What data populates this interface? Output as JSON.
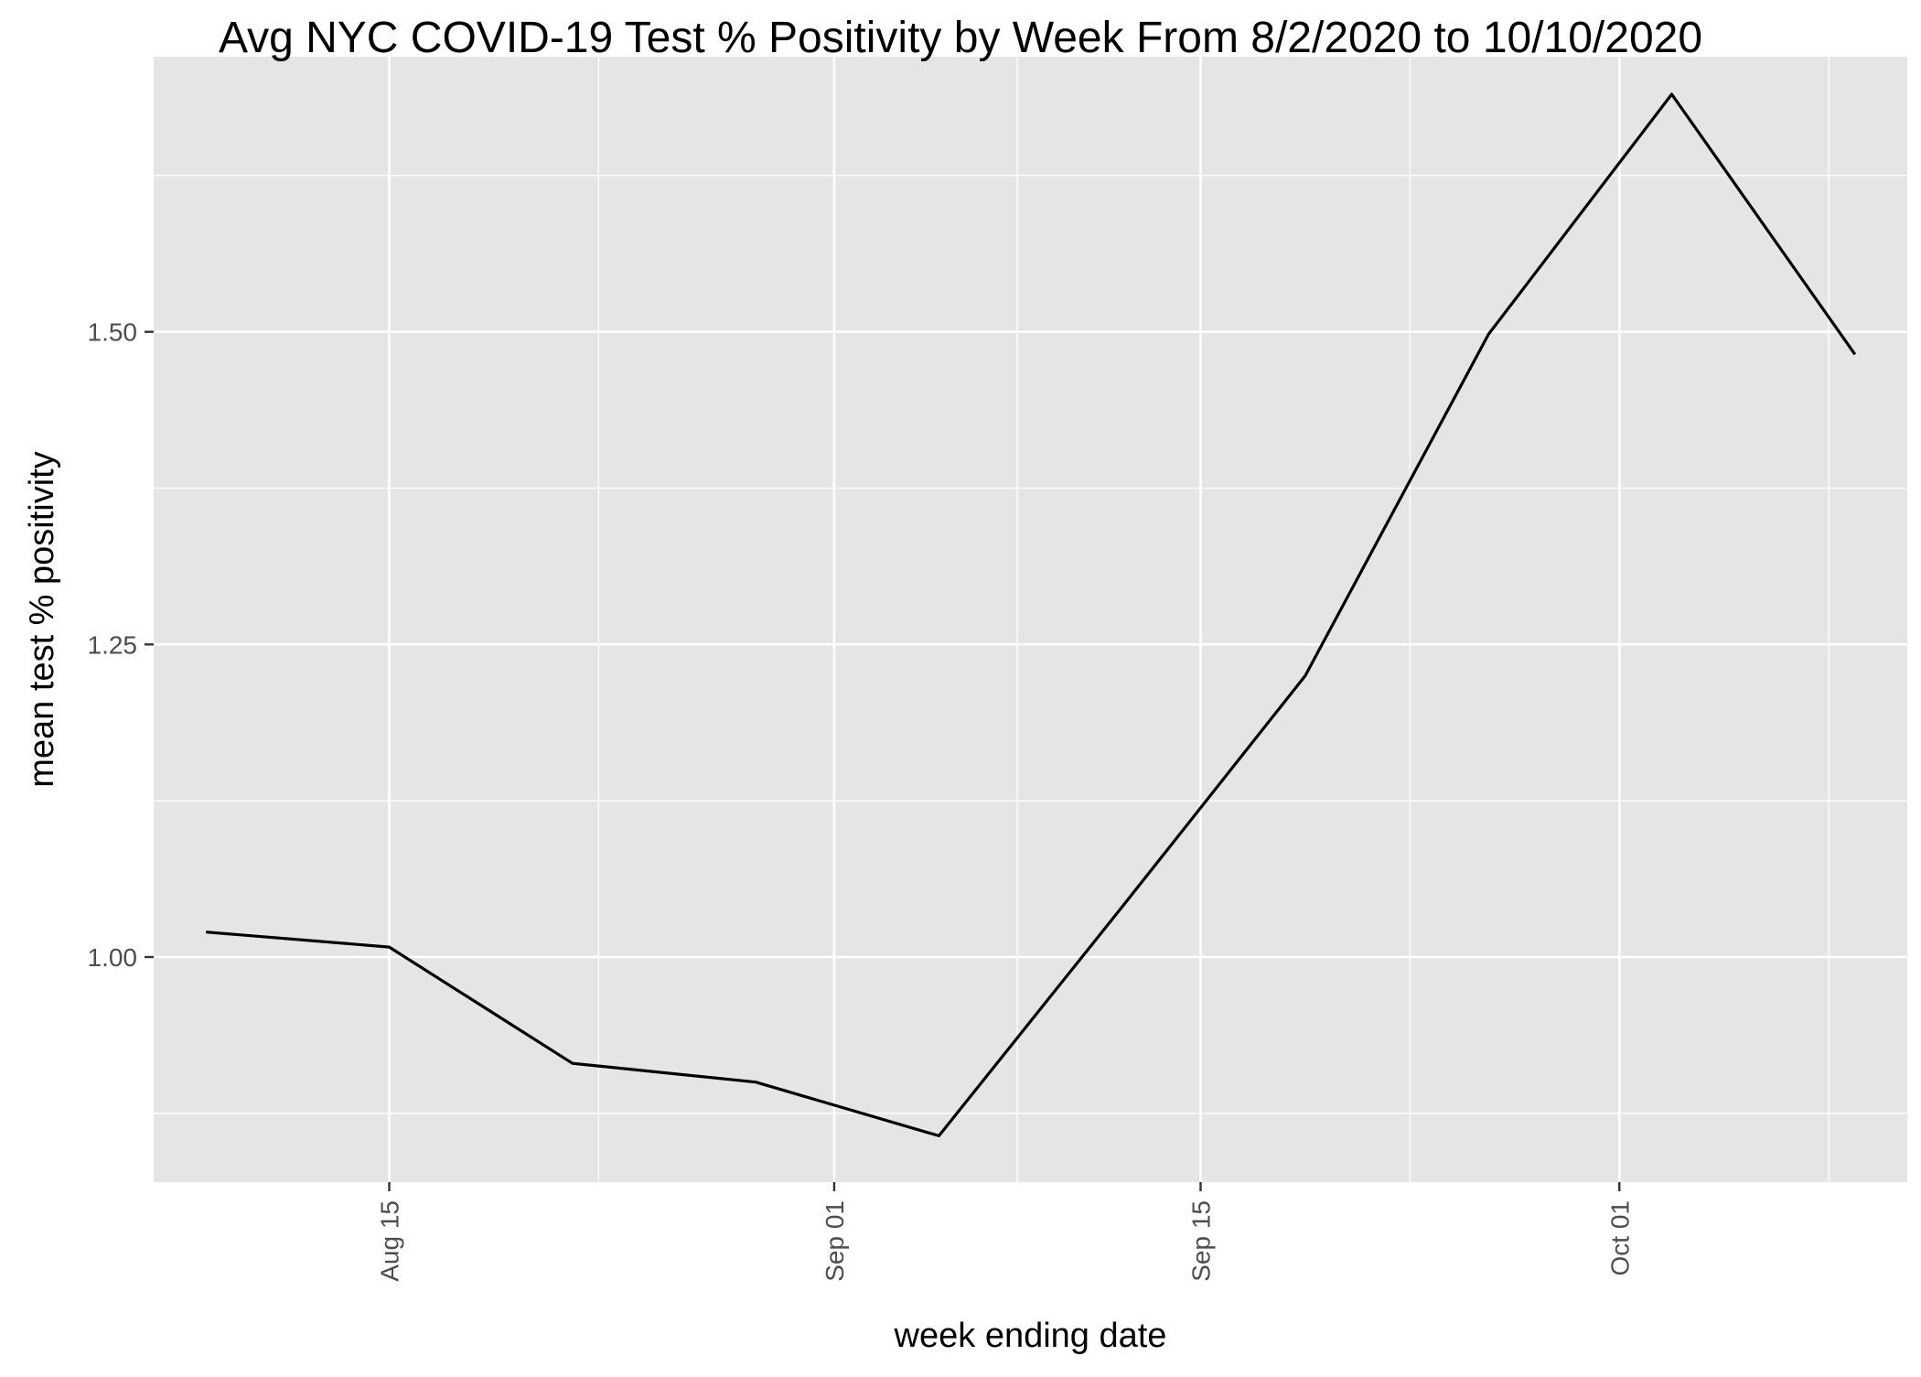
{
  "chart_data": {
    "type": "line",
    "title": "Avg NYC COVID-19 Test % Positivity by Week From 8/2/2020 to 10/10/2020",
    "xlabel": "week ending date",
    "ylabel": "mean test % positivity",
    "x_tick_labels": [
      "Aug 15",
      "Sep 01",
      "Sep 15",
      "Oct 01"
    ],
    "y_tick_labels": [
      "1.00",
      "1.25",
      "1.50"
    ],
    "y_ticks": [
      1.0,
      1.25,
      1.5
    ],
    "ylim": [
      0.82,
      1.72
    ],
    "xlim": [
      "2020-08-06",
      "2020-10-12"
    ],
    "grid": true,
    "colors": {
      "panel": "#e5e5e5",
      "grid": "#ffffff",
      "line": "#000000",
      "tick_text": "#4d4d4d"
    },
    "series": [
      {
        "x": [
          "2020-08-08",
          "2020-08-15",
          "2020-08-22",
          "2020-08-29",
          "2020-09-05",
          "2020-09-12",
          "2020-09-19",
          "2020-09-26",
          "2020-10-03",
          "2020-10-10"
        ],
        "y": [
          1.02,
          1.008,
          0.915,
          0.9,
          0.857,
          1.04,
          1.225,
          1.498,
          1.69,
          1.482
        ]
      }
    ]
  }
}
